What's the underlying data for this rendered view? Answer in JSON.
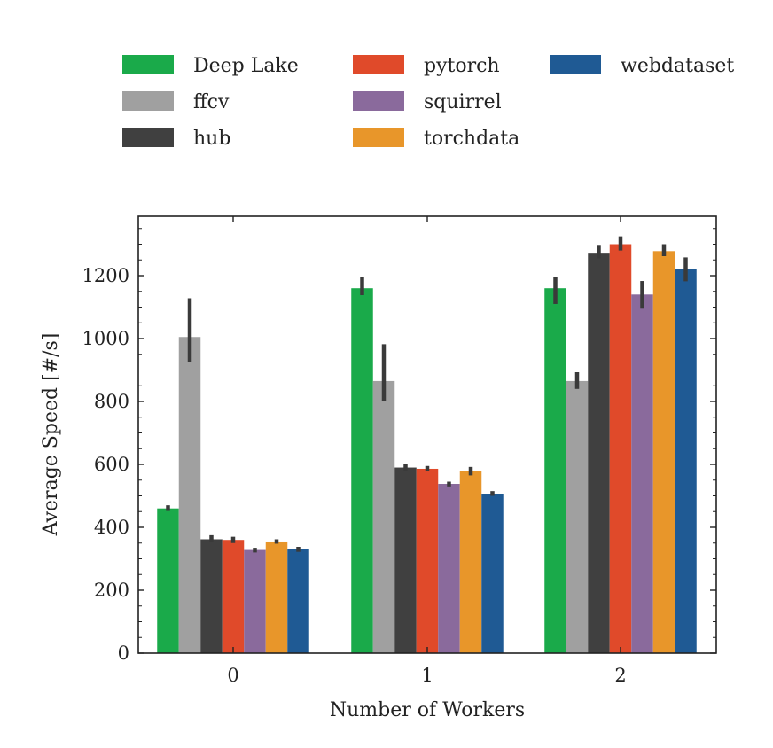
{
  "chart_data": {
    "type": "bar",
    "title": "",
    "xlabel": "Number of Workers",
    "ylabel": "Average Speed [#/s]",
    "categories": [
      "0",
      "1",
      "2"
    ],
    "ylim": [
      0,
      1380
    ],
    "yticks": [
      0,
      200,
      400,
      600,
      800,
      1000,
      1200
    ],
    "grid": false,
    "legend_placement": "top, above plot, 3 columns",
    "series": [
      {
        "name": "Deep Lake",
        "color": "#1aaa4a",
        "values": [
          460,
          1160,
          1160
        ],
        "err": [
          [
            452,
            470
          ],
          [
            1138,
            1195
          ],
          [
            1110,
            1195
          ]
        ]
      },
      {
        "name": "ffcv",
        "color": "#a0a0a0",
        "values": [
          1005,
          865,
          865
        ],
        "err": [
          [
            925,
            1128
          ],
          [
            800,
            982
          ],
          [
            840,
            893
          ]
        ]
      },
      {
        "name": "hub",
        "color": "#404040",
        "values": [
          362,
          590,
          1270
        ],
        "err": [
          [
            352,
            375
          ],
          [
            580,
            600
          ],
          [
            1255,
            1295
          ]
        ]
      },
      {
        "name": "pytorch",
        "color": "#e04a2a",
        "values": [
          360,
          586,
          1300
        ],
        "err": [
          [
            350,
            370
          ],
          [
            578,
            595
          ],
          [
            1280,
            1325
          ]
        ]
      },
      {
        "name": "squirrel",
        "color": "#8a6a9c",
        "values": [
          328,
          538,
          1140
        ],
        "err": [
          [
            320,
            335
          ],
          [
            530,
            545
          ],
          [
            1095,
            1183
          ]
        ]
      },
      {
        "name": "torchdata",
        "color": "#e8962a",
        "values": [
          355,
          578,
          1278
        ],
        "err": [
          [
            348,
            362
          ],
          [
            565,
            592
          ],
          [
            1262,
            1300
          ]
        ]
      },
      {
        "name": "webdataset",
        "color": "#1f5a94",
        "values": [
          330,
          507,
          1220
        ],
        "err": [
          [
            322,
            338
          ],
          [
            500,
            515
          ],
          [
            1182,
            1258
          ]
        ]
      }
    ]
  }
}
